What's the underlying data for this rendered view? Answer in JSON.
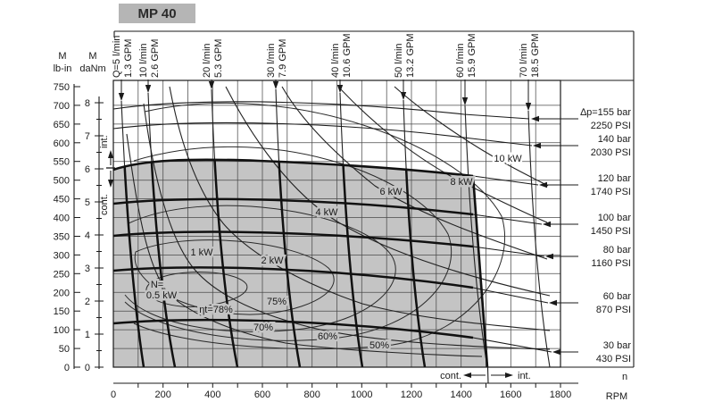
{
  "title": "MP 40",
  "colors": {
    "shaded_region": "#c4c4c4",
    "title_box": "#b5b5b5",
    "line": "#1a1a1a"
  },
  "chart_data": {
    "type": "line",
    "title": "MP 40",
    "description_visible_elements": "Hydraulic motor performance map: torque vs speed with constant-flow lines, constant-pressure curves, constant-power curves, efficiency contours and shaded continuous operating region",
    "x_axis": {
      "name": "n",
      "unit": "RPM",
      "tick_labels": [
        0,
        200,
        400,
        600,
        800,
        1000,
        1200,
        1400,
        1600,
        1800
      ],
      "minor_tick_step": 100,
      "range": [
        0,
        1870
      ]
    },
    "y_axis_lbin": {
      "name": "M",
      "unit": "lb-in",
      "tick_labels": [
        750,
        700,
        650,
        600,
        550,
        500,
        450,
        400,
        350,
        300,
        250,
        200,
        150,
        100,
        50,
        0
      ],
      "range": [
        0,
        750
      ]
    },
    "y_axis_danm": {
      "name": "M",
      "unit": "daNm",
      "tick_labels": [
        8,
        7,
        6,
        5,
        4,
        3,
        2,
        1,
        0
      ],
      "minor_tick_step": 0.5,
      "range": [
        0,
        8
      ]
    },
    "flow_lines": [
      {
        "flow": "Q=5 l/min",
        "gpm": "1.3 GPM"
      },
      {
        "flow": "10 l/min",
        "gpm": "2.6 GPM"
      },
      {
        "flow": "20 l/min",
        "gpm": "5.3 GPM"
      },
      {
        "flow": "30 l/min",
        "gpm": "7.9 GPM"
      },
      {
        "flow": "40 l/min",
        "gpm": "10.6 GPM"
      },
      {
        "flow": "50 l/min",
        "gpm": "13.2 GPM"
      },
      {
        "flow": "60 l/min",
        "gpm": "15.9 GPM"
      },
      {
        "flow": "70 l/min",
        "gpm": "18.5 GPM"
      }
    ],
    "pressure_lines": [
      {
        "bar": "∆p=155 bar",
        "psi": "2250 PSI"
      },
      {
        "bar": "140 bar",
        "psi": "2030 PSI"
      },
      {
        "bar": "120 bar",
        "psi": "1740 PSI"
      },
      {
        "bar": "100 bar",
        "psi": "1450 PSI"
      },
      {
        "bar": "80 bar",
        "psi": "1160 PSI"
      },
      {
        "bar": "60 bar",
        "psi": "870 PSI"
      },
      {
        "bar": "30 bar",
        "psi": "430 PSI"
      }
    ],
    "power_curves": [
      {
        "prefix": "N=",
        "label": "0.5 kW"
      },
      {
        "label": "1 kW"
      },
      {
        "label": "2 kW"
      },
      {
        "label": "4 kW"
      },
      {
        "label": "6 kW"
      },
      {
        "label": "8 kW"
      },
      {
        "label": "10 kW"
      }
    ],
    "efficiency_curves": [
      {
        "label": "ηt=78%"
      },
      {
        "label": "75%"
      },
      {
        "label": "70%"
      },
      {
        "label": "60%"
      },
      {
        "label": "50%"
      }
    ],
    "operating_zones": {
      "left_axis_intermittent": "int.",
      "left_axis_continuous": "cont.",
      "speed_axis_continuous": "cont.",
      "speed_axis_intermittent": "int."
    }
  }
}
